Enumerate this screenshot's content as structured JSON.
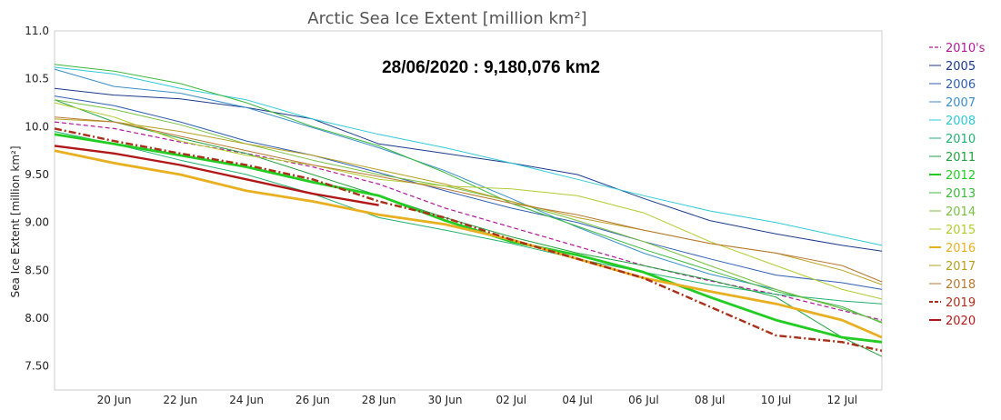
{
  "chart_data": {
    "type": "line",
    "title": "Arctic Sea Ice Extent [million km²]",
    "ylabel": "Sea Ice Extent [million km²]",
    "xlabel": "",
    "annotation": "28/06/2020 : 9,180,076 km2",
    "ylim": [
      7.25,
      11.0
    ],
    "xlim": [
      18.2,
      43.2
    ],
    "grid": true,
    "legend_position": "right",
    "y_ticks": [
      "7.50",
      "8.00",
      "8.50",
      "9.00",
      "9.50",
      "10.0",
      "10.5",
      "11.0"
    ],
    "x_ticks": [
      {
        "label": "20 Jun",
        "day": 20
      },
      {
        "label": "22 Jun",
        "day": 22
      },
      {
        "label": "24 Jun",
        "day": 24
      },
      {
        "label": "26 Jun",
        "day": 26
      },
      {
        "label": "28 Jun",
        "day": 28
      },
      {
        "label": "30 Jun",
        "day": 30
      },
      {
        "label": "02 Jul",
        "day": 32
      },
      {
        "label": "04 Jul",
        "day": 34
      },
      {
        "label": "06 Jul",
        "day": 36
      },
      {
        "label": "08 Jul",
        "day": 38
      },
      {
        "label": "10 Jul",
        "day": 40
      },
      {
        "label": "12 Jul",
        "day": 42
      }
    ],
    "series": [
      {
        "name": "2010's",
        "color": "#b0189a",
        "dash": "5,3",
        "width": 1.2,
        "x": [
          18.2,
          20,
          22,
          24,
          26,
          28,
          30,
          32,
          34,
          36,
          38,
          40,
          42,
          43.2
        ],
        "y": [
          10.05,
          9.98,
          9.84,
          9.72,
          9.58,
          9.4,
          9.15,
          8.95,
          8.75,
          8.55,
          8.39,
          8.25,
          8.08,
          7.98
        ]
      },
      {
        "name": "2005",
        "color": "#1a3a8a",
        "width": 1.0,
        "x": [
          18.2,
          20,
          22,
          24,
          26,
          28,
          30,
          32,
          34,
          36,
          38,
          40,
          42,
          43.2
        ],
        "y": [
          10.4,
          10.33,
          10.29,
          10.2,
          10.08,
          9.82,
          9.72,
          9.62,
          9.5,
          9.25,
          9.02,
          8.88,
          8.76,
          8.7
        ]
      },
      {
        "name": "2006",
        "color": "#2f5fb0",
        "width": 1.0,
        "x": [
          18.2,
          20,
          22,
          24,
          26,
          28,
          30,
          32,
          34,
          36,
          38,
          40,
          42,
          43.2
        ],
        "y": [
          10.32,
          10.22,
          10.05,
          9.85,
          9.7,
          9.52,
          9.33,
          9.15,
          9.0,
          8.8,
          8.62,
          8.45,
          8.37,
          8.3
        ]
      },
      {
        "name": "2007",
        "color": "#3a8ec8",
        "width": 1.0,
        "x": [
          18.2,
          20,
          22,
          24,
          26,
          28,
          30,
          32,
          34,
          36,
          38,
          40,
          42,
          43.2
        ],
        "y": [
          10.6,
          10.42,
          10.35,
          10.2,
          9.99,
          9.78,
          9.54,
          9.25,
          8.95,
          8.68,
          8.46,
          8.3,
          8.1,
          7.96
        ]
      },
      {
        "name": "2008",
        "color": "#30c8d8",
        "width": 1.0,
        "x": [
          18.2,
          20,
          22,
          24,
          26,
          28,
          30,
          32,
          34,
          36,
          38,
          40,
          42,
          43.2
        ],
        "y": [
          10.62,
          10.55,
          10.4,
          10.28,
          10.08,
          9.92,
          9.78,
          9.62,
          9.45,
          9.28,
          9.12,
          9.0,
          8.85,
          8.76
        ]
      },
      {
        "name": "2010",
        "color": "#20b070",
        "width": 1.0,
        "x": [
          18.2,
          20,
          22,
          24,
          26,
          28,
          30,
          32,
          34,
          36,
          38,
          40,
          42,
          43.2
        ],
        "y": [
          9.95,
          9.82,
          9.65,
          9.5,
          9.3,
          9.05,
          8.92,
          8.78,
          8.62,
          8.48,
          8.35,
          8.25,
          8.18,
          8.15
        ]
      },
      {
        "name": "2011",
        "color": "#22a040",
        "width": 1.0,
        "x": [
          18.2,
          20,
          22,
          24,
          26,
          28,
          30,
          32,
          34,
          36,
          38,
          40,
          42,
          43.2
        ],
        "y": [
          10.28,
          10.05,
          9.88,
          9.72,
          9.5,
          9.28,
          9.05,
          8.85,
          8.68,
          8.55,
          8.4,
          8.22,
          7.8,
          7.6
        ]
      },
      {
        "name": "2012",
        "color": "#22cc22",
        "width": 2.8,
        "x": [
          18.2,
          20,
          22,
          24,
          26,
          28,
          30,
          32,
          34,
          36,
          38,
          40,
          42,
          43.2
        ],
        "y": [
          9.92,
          9.82,
          9.7,
          9.58,
          9.42,
          9.28,
          9.02,
          8.8,
          8.66,
          8.48,
          8.22,
          7.98,
          7.8,
          7.75
        ]
      },
      {
        "name": "2013",
        "color": "#3cb83c",
        "width": 1.0,
        "x": [
          18.2,
          20,
          22,
          24,
          26,
          28,
          30,
          32,
          34,
          36,
          38,
          40,
          42,
          43.2
        ],
        "y": [
          10.65,
          10.58,
          10.45,
          10.25,
          10.0,
          9.8,
          9.52,
          9.2,
          8.96,
          8.72,
          8.5,
          8.28,
          8.12,
          7.95
        ]
      },
      {
        "name": "2014",
        "color": "#78c040",
        "width": 1.0,
        "x": [
          18.2,
          20,
          22,
          24,
          26,
          28,
          30,
          32,
          34,
          36,
          38,
          40,
          42,
          43.2
        ],
        "y": [
          10.28,
          10.18,
          10.02,
          9.82,
          9.65,
          9.5,
          9.38,
          9.22,
          9.02,
          8.8,
          8.55,
          8.3,
          8.1,
          7.96
        ]
      },
      {
        "name": "2015",
        "color": "#b0cc30",
        "width": 1.0,
        "x": [
          18.2,
          20,
          22,
          24,
          26,
          28,
          30,
          32,
          34,
          36,
          38,
          40,
          42,
          43.2
        ],
        "y": [
          10.25,
          10.1,
          9.85,
          9.7,
          9.6,
          9.45,
          9.38,
          9.35,
          9.28,
          9.1,
          8.8,
          8.55,
          8.3,
          8.2
        ]
      },
      {
        "name": "2016",
        "color": "#e8b020",
        "width": 2.8,
        "x": [
          18.2,
          20,
          22,
          24,
          26,
          28,
          30,
          32,
          34,
          36,
          38,
          40,
          42,
          43.2
        ],
        "y": [
          9.75,
          9.62,
          9.5,
          9.33,
          9.22,
          9.08,
          8.98,
          8.82,
          8.62,
          8.42,
          8.28,
          8.15,
          7.98,
          7.8
        ]
      },
      {
        "name": "2017",
        "color": "#b8a020",
        "width": 1.0,
        "x": [
          18.2,
          20,
          22,
          24,
          26,
          28,
          30,
          32,
          34,
          36,
          38,
          40,
          42,
          43.2
        ],
        "y": [
          10.08,
          10.05,
          9.95,
          9.82,
          9.7,
          9.55,
          9.4,
          9.22,
          9.05,
          8.92,
          8.78,
          8.68,
          8.5,
          8.35
        ]
      },
      {
        "name": "2018",
        "color": "#b87830",
        "width": 1.0,
        "x": [
          18.2,
          20,
          22,
          24,
          26,
          28,
          30,
          32,
          34,
          36,
          38,
          40,
          42,
          43.2
        ],
        "y": [
          10.1,
          10.05,
          9.9,
          9.75,
          9.6,
          9.48,
          9.35,
          9.2,
          9.08,
          8.92,
          8.78,
          8.68,
          8.55,
          8.38
        ]
      },
      {
        "name": "2019",
        "color": "#a83018",
        "dash": "8,3,2,3",
        "width": 2.4,
        "x": [
          18.2,
          20,
          22,
          24,
          26,
          28,
          30,
          32,
          34,
          36,
          38,
          40,
          42,
          43.2
        ],
        "y": [
          9.98,
          9.85,
          9.72,
          9.6,
          9.45,
          9.22,
          9.05,
          8.82,
          8.62,
          8.42,
          8.12,
          7.82,
          7.75,
          7.66
        ]
      },
      {
        "name": "2020",
        "color": "#b01818",
        "width": 2.4,
        "x": [
          18.2,
          20,
          22,
          24,
          26,
          28
        ],
        "y": [
          9.8,
          9.72,
          9.6,
          9.45,
          9.3,
          9.18
        ]
      }
    ]
  }
}
